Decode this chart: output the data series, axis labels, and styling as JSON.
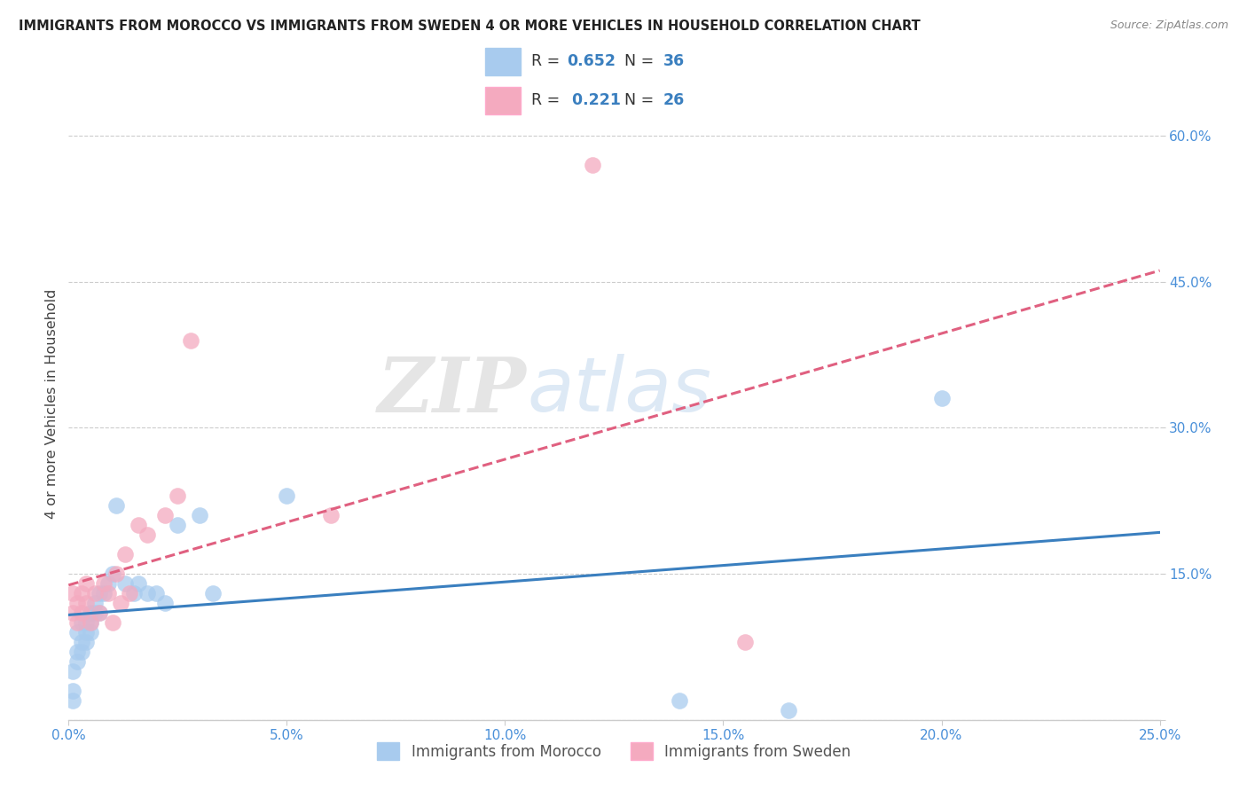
{
  "title": "IMMIGRANTS FROM MOROCCO VS IMMIGRANTS FROM SWEDEN 4 OR MORE VEHICLES IN HOUSEHOLD CORRELATION CHART",
  "source": "Source: ZipAtlas.com",
  "ylabel": "4 or more Vehicles in Household",
  "xlim": [
    0.0,
    0.25
  ],
  "ylim": [
    0.0,
    0.65
  ],
  "xticks": [
    0.0,
    0.05,
    0.1,
    0.15,
    0.2,
    0.25
  ],
  "yticks": [
    0.0,
    0.15,
    0.3,
    0.45,
    0.6
  ],
  "xticklabels": [
    "0.0%",
    "5.0%",
    "10.0%",
    "15.0%",
    "20.0%",
    "25.0%"
  ],
  "yticklabels": [
    "",
    "15.0%",
    "30.0%",
    "45.0%",
    "60.0%"
  ],
  "legend1_label": "Immigrants from Morocco",
  "legend2_label": "Immigrants from Sweden",
  "R_morocco": 0.652,
  "N_morocco": 36,
  "R_sweden": 0.221,
  "N_sweden": 26,
  "morocco_color": "#A8CBEE",
  "sweden_color": "#F4AABF",
  "morocco_line_color": "#3A7FBF",
  "sweden_line_color": "#E06080",
  "watermark_zip": "ZIP",
  "watermark_atlas": "atlas",
  "morocco_x": [
    0.001,
    0.001,
    0.001,
    0.002,
    0.002,
    0.002,
    0.003,
    0.003,
    0.003,
    0.004,
    0.004,
    0.004,
    0.005,
    0.005,
    0.005,
    0.006,
    0.006,
    0.007,
    0.007,
    0.008,
    0.009,
    0.01,
    0.011,
    0.013,
    0.015,
    0.016,
    0.018,
    0.02,
    0.022,
    0.025,
    0.03,
    0.033,
    0.05,
    0.14,
    0.165,
    0.2
  ],
  "morocco_y": [
    0.05,
    0.03,
    0.02,
    0.06,
    0.07,
    0.09,
    0.07,
    0.08,
    0.1,
    0.09,
    0.1,
    0.08,
    0.1,
    0.11,
    0.09,
    0.11,
    0.12,
    0.11,
    0.13,
    0.13,
    0.14,
    0.15,
    0.22,
    0.14,
    0.13,
    0.14,
    0.13,
    0.13,
    0.12,
    0.2,
    0.21,
    0.13,
    0.23,
    0.02,
    0.01,
    0.33
  ],
  "sweden_x": [
    0.001,
    0.001,
    0.002,
    0.002,
    0.003,
    0.003,
    0.004,
    0.004,
    0.005,
    0.006,
    0.007,
    0.008,
    0.009,
    0.01,
    0.011,
    0.012,
    0.013,
    0.014,
    0.016,
    0.018,
    0.022,
    0.025,
    0.028,
    0.06,
    0.12,
    0.155
  ],
  "sweden_y": [
    0.11,
    0.13,
    0.1,
    0.12,
    0.11,
    0.13,
    0.12,
    0.14,
    0.1,
    0.13,
    0.11,
    0.14,
    0.13,
    0.1,
    0.15,
    0.12,
    0.17,
    0.13,
    0.2,
    0.19,
    0.21,
    0.23,
    0.39,
    0.21,
    0.57,
    0.08
  ]
}
